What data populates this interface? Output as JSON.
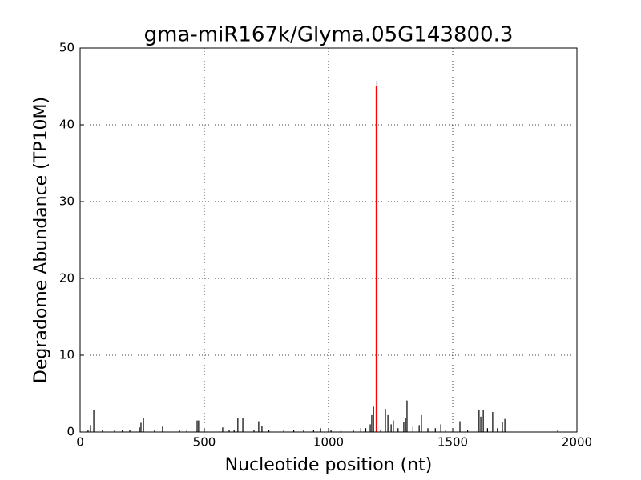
{
  "chart_data": {
    "type": "stem",
    "title": "gma-miR167k/Glyma.05G143800.3",
    "x_label": "Nucleotide position (nt)",
    "y_label": "Degradome Abundance (TP10M)",
    "xlim": [
      0,
      2000
    ],
    "xticks": [
      0,
      500,
      1000,
      1500,
      2000
    ],
    "ylim": [
      0,
      50
    ],
    "yticks": [
      0,
      10,
      20,
      30,
      40,
      50
    ],
    "grid": true,
    "series": [
      {
        "color": "#000000",
        "x": [
          32,
          42,
          55,
          90,
          139,
          170,
          200,
          239,
          245,
          255,
          300,
          332,
          400,
          430,
          471,
          477,
          574,
          600,
          620,
          635,
          655,
          700,
          719,
          732,
          760,
          820,
          860,
          900,
          940,
          968,
          1010,
          1050,
          1100,
          1130,
          1150,
          1168,
          1174,
          1181,
          1195,
          1210,
          1229,
          1239,
          1252,
          1261,
          1280,
          1303,
          1310,
          1316,
          1340,
          1365,
          1374,
          1400,
          1430,
          1452,
          1470,
          1529,
          1560,
          1606,
          1613,
          1623,
          1640,
          1661,
          1680,
          1700,
          1710,
          1923
        ],
        "values": [
          0.3,
          0.9,
          2.9,
          0.3,
          0.3,
          0.3,
          0.3,
          0.6,
          1.2,
          1.8,
          0.3,
          0.7,
          0.3,
          0.3,
          1.5,
          1.5,
          0.6,
          0.3,
          0.3,
          1.8,
          1.8,
          0.3,
          1.4,
          0.8,
          0.3,
          0.3,
          0.3,
          0.3,
          0.3,
          0.5,
          0.3,
          0.3,
          0.3,
          0.5,
          0.5,
          1.0,
          2.2,
          3.3,
          45.7,
          0.3,
          3.0,
          2.2,
          1.0,
          1.5,
          0.5,
          1.3,
          1.8,
          4.1,
          0.7,
          0.9,
          2.2,
          0.5,
          0.5,
          1.0,
          0.3,
          1.4,
          0.3,
          2.9,
          2.0,
          2.9,
          0.5,
          2.6,
          0.5,
          1.3,
          1.7,
          0.3
        ]
      },
      {
        "color": "#ff0000",
        "x": [
          1193
        ],
        "values": [
          45
        ]
      }
    ]
  }
}
